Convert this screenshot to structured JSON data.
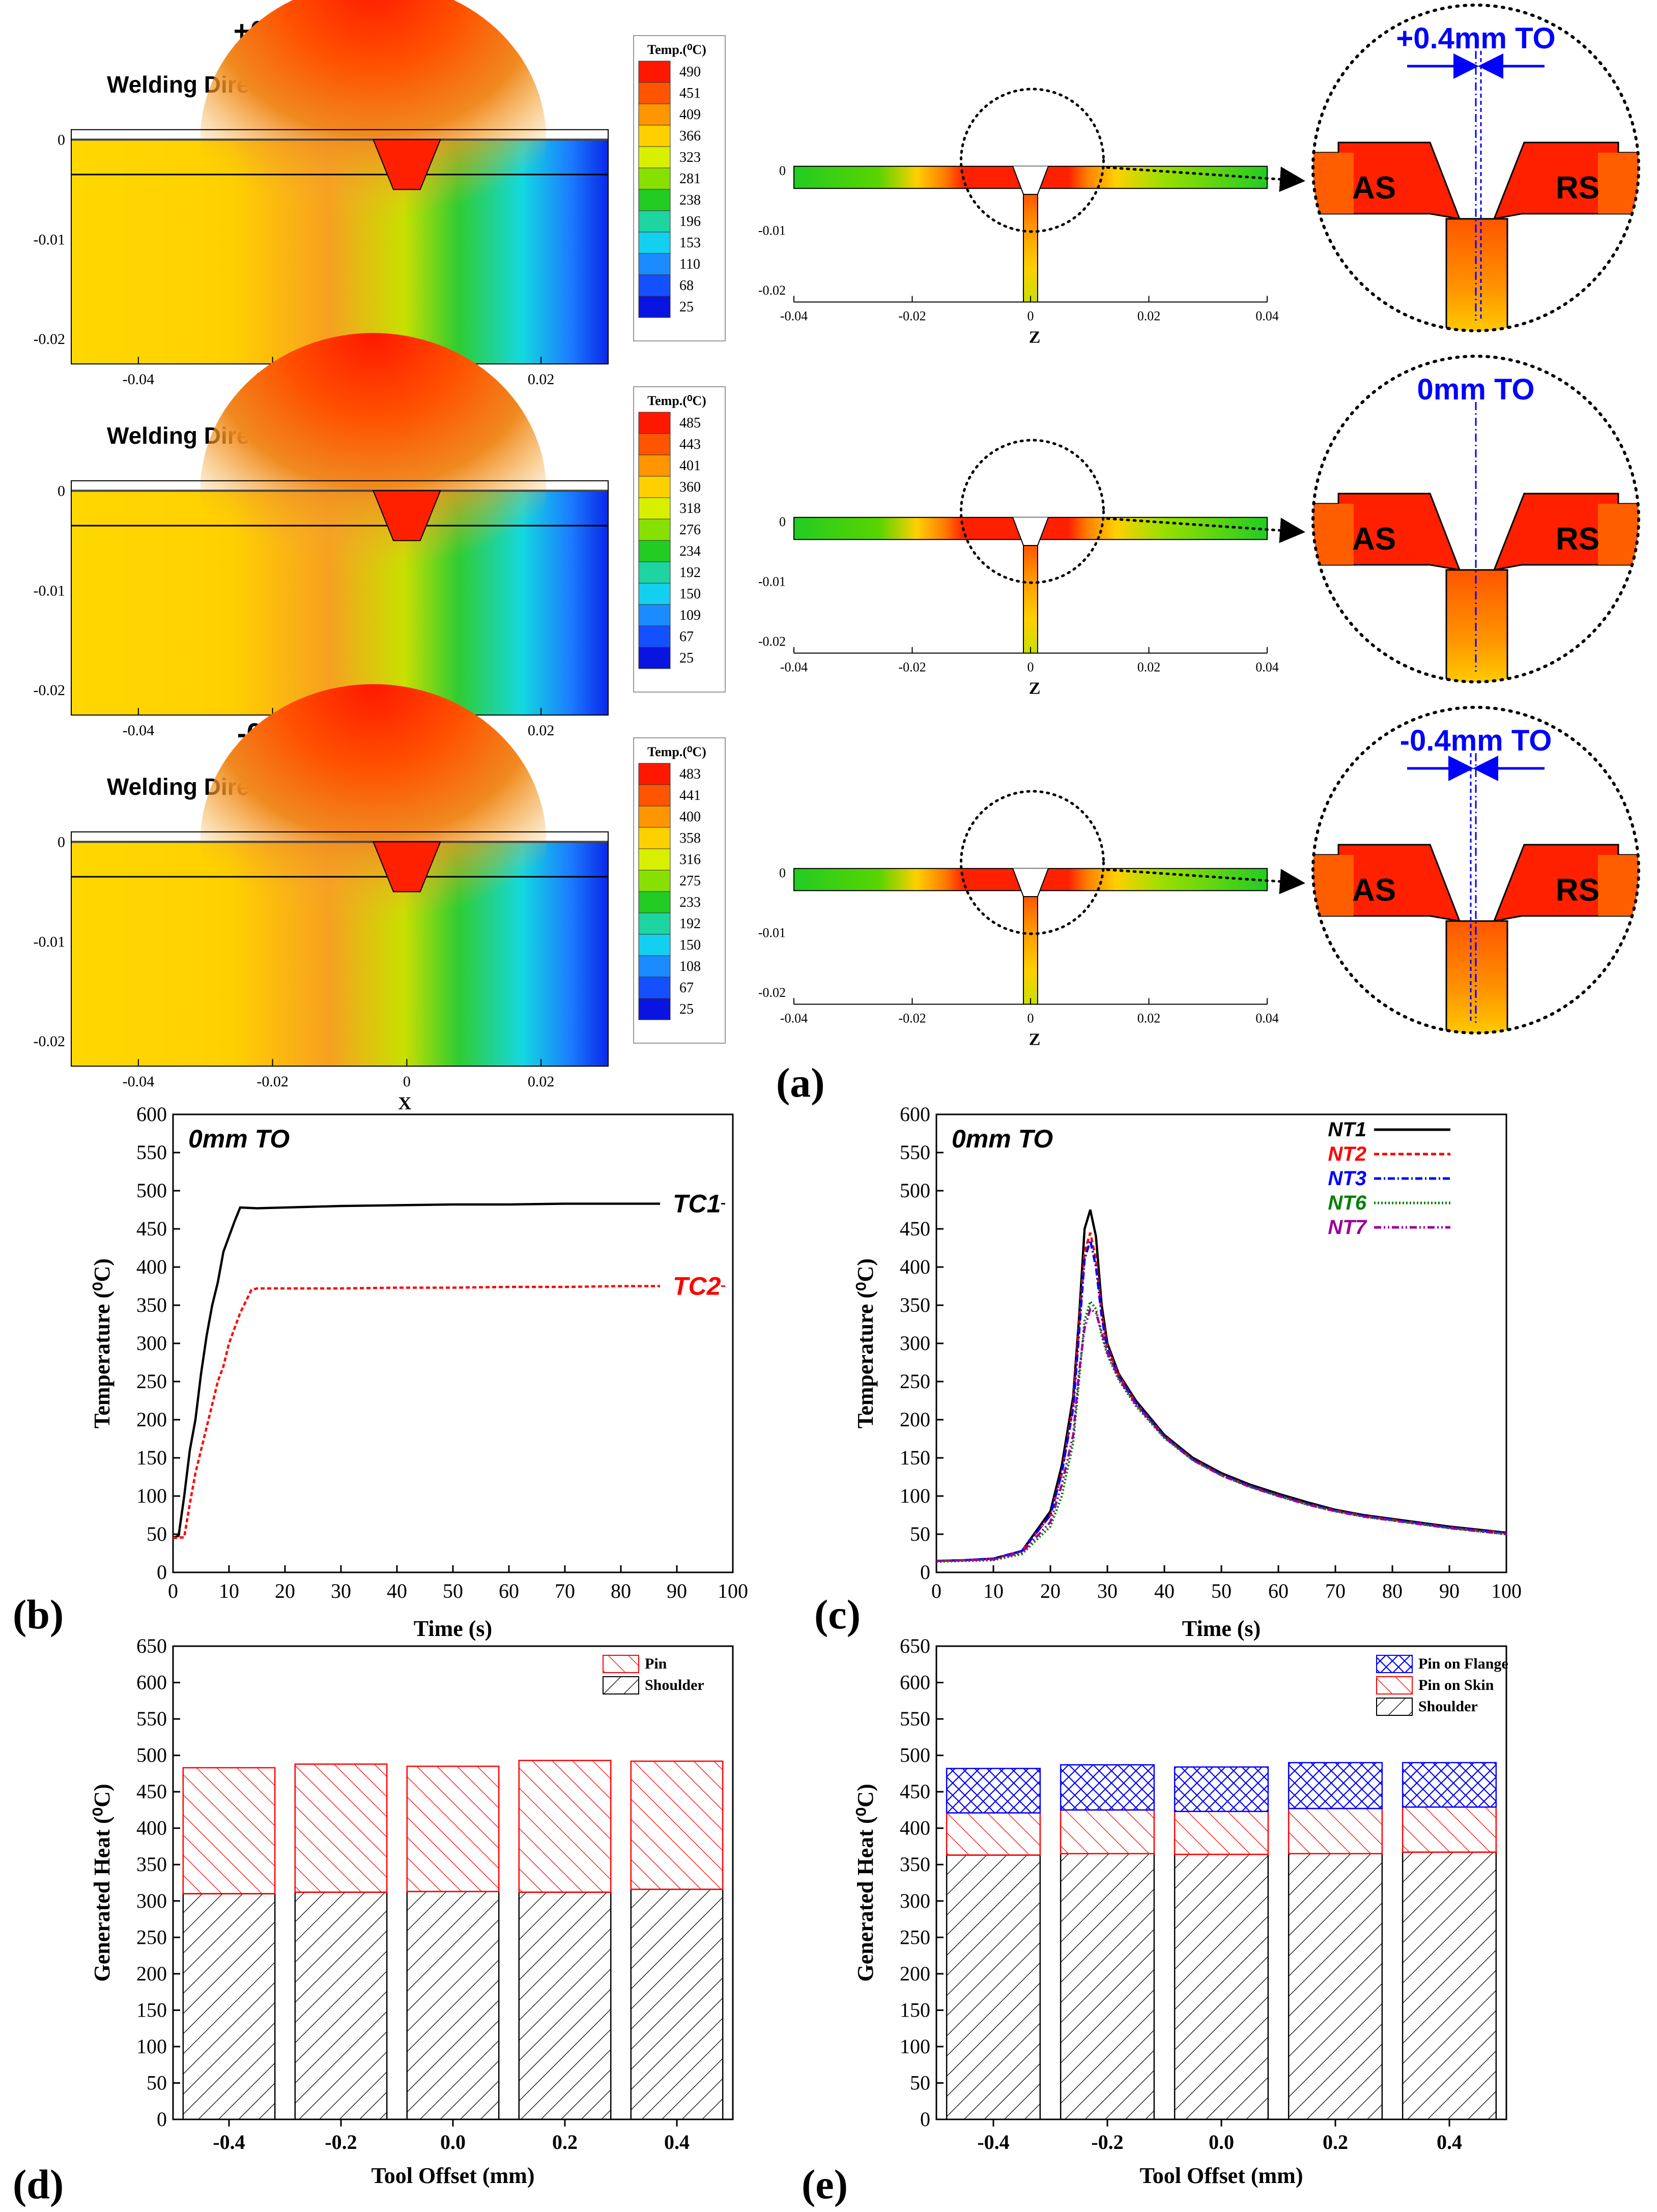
{
  "panel_labels": {
    "a": "(a)",
    "b": "(b)",
    "c": "(c)",
    "d": "(d)",
    "e": "(e)"
  },
  "rows": [
    {
      "title": "+0.4mm TO",
      "legend_title": "Temp.(⁰C)",
      "legend_values": [
        "490",
        "451",
        "409",
        "366",
        "323",
        "281",
        "238",
        "196",
        "153",
        "110",
        "68",
        "25"
      ],
      "zoom_label": "+0.4mm TO",
      "offset": 0.4
    },
    {
      "title": "0mm TO",
      "legend_title": "Temp.(⁰C)",
      "legend_values": [
        "485",
        "443",
        "401",
        "360",
        "318",
        "276",
        "234",
        "192",
        "150",
        "109",
        "67",
        "25"
      ],
      "zoom_label": "0mm TO",
      "offset": 0
    },
    {
      "title": "-0.4mm TO",
      "legend_title": "Temp.(⁰C)",
      "legend_values": [
        "483",
        "441",
        "400",
        "358",
        "316",
        "275",
        "233",
        "192",
        "150",
        "108",
        "67",
        "25"
      ],
      "zoom_label": "-0.4mm TO",
      "offset": -0.4
    }
  ],
  "contour_common": {
    "welding_direction": "Welding Direction",
    "x_axis_label": "X",
    "z_axis_label": "Z",
    "x_ticks": [
      "-0.04",
      "-0.02",
      "0",
      "0.02"
    ],
    "z_ticks": [
      "-0.04",
      "-0.02",
      "0",
      "0.02",
      "0.04"
    ],
    "y_ticks": [
      "0",
      "-0.01",
      "-0.02"
    ],
    "as_label": "AS",
    "rs_label": "RS",
    "legend_colors": [
      "#ff1800",
      "#ff5500",
      "#ff9500",
      "#ffd000",
      "#d8f000",
      "#88e000",
      "#22cc22",
      "#1ed4a0",
      "#14d0f0",
      "#1a8cff",
      "#1450ff",
      "#0a14e0"
    ]
  },
  "chart_data": [
    {
      "id": "b",
      "type": "line",
      "annotation": "0mm TO",
      "xlabel": "Time (s)",
      "ylabel": "Temperature (⁰C)",
      "xlim": [
        0,
        100
      ],
      "ylim": [
        0,
        600
      ],
      "x_ticks": [
        0,
        10,
        20,
        30,
        40,
        50,
        60,
        70,
        80,
        90,
        100
      ],
      "y_ticks": [
        0,
        50,
        100,
        150,
        200,
        250,
        300,
        350,
        400,
        450,
        500,
        550,
        600
      ],
      "series": [
        {
          "name": "TC1",
          "color": "#000000",
          "dash": "",
          "x": [
            0,
            1,
            2,
            3,
            4,
            5,
            6,
            7,
            8,
            9,
            10,
            11,
            12,
            15,
            20,
            30,
            40,
            50,
            60,
            70,
            80,
            87
          ],
          "y": [
            45,
            48,
            100,
            160,
            200,
            260,
            310,
            350,
            380,
            420,
            440,
            460,
            478,
            477,
            478,
            480,
            481,
            482,
            482,
            483,
            483,
            483
          ]
        },
        {
          "name": "TC2",
          "color": "#ff0000",
          "dash": "8,5",
          "x": [
            0,
            2,
            3,
            4,
            5,
            6,
            7,
            8,
            9,
            10,
            11,
            12,
            13,
            14,
            15,
            20,
            30,
            40,
            50,
            60,
            70,
            80,
            87
          ],
          "y": [
            45,
            46,
            90,
            130,
            160,
            190,
            220,
            250,
            270,
            300,
            320,
            340,
            355,
            370,
            372,
            372,
            372,
            373,
            373,
            374,
            374,
            375,
            375
          ]
        }
      ]
    },
    {
      "id": "c",
      "type": "line",
      "annotation": "0mm TO",
      "xlabel": "Time (s)",
      "ylabel": "Temperature (⁰C)",
      "xlim": [
        0,
        100
      ],
      "ylim": [
        0,
        600
      ],
      "x_ticks": [
        0,
        10,
        20,
        30,
        40,
        50,
        60,
        70,
        80,
        90,
        100
      ],
      "y_ticks": [
        0,
        50,
        100,
        150,
        200,
        250,
        300,
        350,
        400,
        450,
        500,
        550,
        600
      ],
      "series": [
        {
          "name": "NT1",
          "color": "#000000",
          "dash": "",
          "x": [
            0,
            5,
            10,
            15,
            20,
            22,
            24,
            25,
            26,
            27,
            28,
            29,
            30,
            32,
            35,
            40,
            45,
            50,
            55,
            60,
            65,
            70,
            75,
            80,
            85,
            90,
            95,
            100
          ],
          "y": [
            15,
            16,
            18,
            28,
            80,
            140,
            230,
            330,
            450,
            475,
            440,
            350,
            300,
            260,
            225,
            180,
            150,
            130,
            115,
            103,
            92,
            82,
            75,
            70,
            65,
            60,
            56,
            52
          ]
        },
        {
          "name": "NT2",
          "color": "#ff0000",
          "dash": "10,6",
          "x": [
            0,
            5,
            10,
            15,
            20,
            22,
            24,
            25,
            26,
            27,
            28,
            29,
            30,
            32,
            35,
            40,
            45,
            50,
            55,
            60,
            65,
            70,
            75,
            80,
            85,
            90,
            95,
            100
          ],
          "y": [
            15,
            16,
            18,
            28,
            75,
            130,
            220,
            320,
            420,
            445,
            410,
            340,
            295,
            258,
            222,
            178,
            148,
            128,
            113,
            101,
            90,
            81,
            74,
            69,
            64,
            59,
            55,
            52
          ]
        },
        {
          "name": "NT3",
          "color": "#0000ff",
          "dash": "14,5,3,5",
          "x": [
            0,
            5,
            10,
            15,
            20,
            22,
            24,
            25,
            26,
            27,
            28,
            29,
            30,
            32,
            35,
            40,
            45,
            50,
            55,
            60,
            65,
            70,
            75,
            80,
            85,
            90,
            95,
            100
          ],
          "y": [
            15,
            16,
            18,
            28,
            75,
            130,
            215,
            310,
            410,
            435,
            400,
            335,
            292,
            256,
            222,
            178,
            148,
            128,
            113,
            101,
            90,
            81,
            74,
            69,
            64,
            59,
            55,
            52
          ]
        },
        {
          "name": "NT6",
          "color": "#008000",
          "dash": "3,4",
          "x": [
            0,
            5,
            10,
            15,
            20,
            22,
            24,
            25,
            26,
            27,
            28,
            29,
            30,
            32,
            35,
            40,
            45,
            50,
            55,
            60,
            65,
            70,
            75,
            80,
            85,
            90,
            95,
            100
          ],
          "y": [
            14,
            15,
            16,
            24,
            60,
            100,
            170,
            250,
            330,
            355,
            345,
            310,
            285,
            252,
            218,
            176,
            147,
            127,
            112,
            100,
            89,
            80,
            73,
            68,
            63,
            58,
            54,
            50
          ]
        },
        {
          "name": "NT7",
          "color": "#990099",
          "dash": "14,5,3,5,3,5",
          "x": [
            0,
            5,
            10,
            15,
            20,
            22,
            24,
            25,
            26,
            27,
            28,
            29,
            30,
            32,
            35,
            40,
            45,
            50,
            55,
            60,
            65,
            70,
            75,
            80,
            85,
            90,
            95,
            100
          ],
          "y": [
            15,
            16,
            17,
            26,
            66,
            115,
            180,
            260,
            320,
            345,
            340,
            315,
            288,
            254,
            220,
            177,
            147,
            127,
            112,
            100,
            89,
            80,
            73,
            68,
            63,
            58,
            54,
            50
          ]
        }
      ]
    },
    {
      "id": "d",
      "type": "bar",
      "stacked": true,
      "xlabel": "Tool Offset (mm)",
      "ylabel": "Generated Heat (⁰C)",
      "ylim": [
        0,
        650
      ],
      "y_ticks": [
        0,
        50,
        100,
        150,
        200,
        250,
        300,
        350,
        400,
        450,
        500,
        550,
        600,
        650
      ],
      "categories": [
        "-0.4",
        "-0.2",
        "0.0",
        "0.2",
        "0.4"
      ],
      "series": [
        {
          "name": "Shoulder",
          "color": "#000000",
          "values": [
            310,
            312,
            313,
            312,
            316
          ]
        },
        {
          "name": "Pin",
          "color": "#ff0000",
          "values": [
            173,
            176,
            172,
            181,
            176
          ]
        }
      ]
    },
    {
      "id": "e",
      "type": "bar",
      "stacked": true,
      "xlabel": "Tool Offset (mm)",
      "ylabel": "Generated Heat (⁰C)",
      "ylim": [
        0,
        650
      ],
      "y_ticks": [
        0,
        50,
        100,
        150,
        200,
        250,
        300,
        350,
        400,
        450,
        500,
        550,
        600,
        650
      ],
      "categories": [
        "-0.4",
        "-0.2",
        "0.0",
        "0.2",
        "0.4"
      ],
      "series": [
        {
          "name": "Shoulder",
          "color": "#000000",
          "values": [
            363,
            365,
            364,
            365,
            367
          ]
        },
        {
          "name": "Pin on Skin",
          "color": "#ff0000",
          "values": [
            58,
            60,
            59,
            62,
            62
          ]
        },
        {
          "name": "Pin on Flange",
          "color": "#0000ff",
          "values": [
            61,
            62,
            61,
            63,
            61
          ]
        }
      ]
    }
  ]
}
